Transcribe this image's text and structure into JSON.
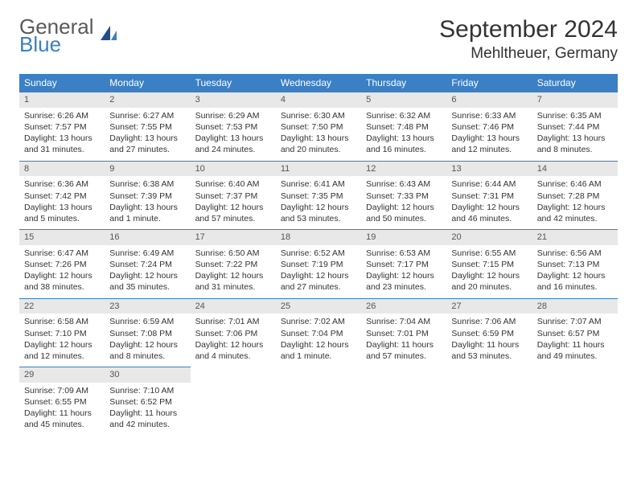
{
  "logo": {
    "general": "General",
    "blue": "Blue"
  },
  "title": "September 2024",
  "location": "Mehltheuer, Germany",
  "colors": {
    "header_bg": "#3b7fc4",
    "header_text": "#ffffff",
    "daynum_bg": "#e8e8e8",
    "daynum_border": "#3b7fc4",
    "text": "#333333",
    "logo_gray": "#5a5a5a",
    "logo_blue": "#3b7fc4"
  },
  "day_names": [
    "Sunday",
    "Monday",
    "Tuesday",
    "Wednesday",
    "Thursday",
    "Friday",
    "Saturday"
  ],
  "weeks": [
    [
      {
        "n": "1",
        "sunrise": "Sunrise: 6:26 AM",
        "sunset": "Sunset: 7:57 PM",
        "daylight": "Daylight: 13 hours and 31 minutes."
      },
      {
        "n": "2",
        "sunrise": "Sunrise: 6:27 AM",
        "sunset": "Sunset: 7:55 PM",
        "daylight": "Daylight: 13 hours and 27 minutes."
      },
      {
        "n": "3",
        "sunrise": "Sunrise: 6:29 AM",
        "sunset": "Sunset: 7:53 PM",
        "daylight": "Daylight: 13 hours and 24 minutes."
      },
      {
        "n": "4",
        "sunrise": "Sunrise: 6:30 AM",
        "sunset": "Sunset: 7:50 PM",
        "daylight": "Daylight: 13 hours and 20 minutes."
      },
      {
        "n": "5",
        "sunrise": "Sunrise: 6:32 AM",
        "sunset": "Sunset: 7:48 PM",
        "daylight": "Daylight: 13 hours and 16 minutes."
      },
      {
        "n": "6",
        "sunrise": "Sunrise: 6:33 AM",
        "sunset": "Sunset: 7:46 PM",
        "daylight": "Daylight: 13 hours and 12 minutes."
      },
      {
        "n": "7",
        "sunrise": "Sunrise: 6:35 AM",
        "sunset": "Sunset: 7:44 PM",
        "daylight": "Daylight: 13 hours and 8 minutes."
      }
    ],
    [
      {
        "n": "8",
        "sunrise": "Sunrise: 6:36 AM",
        "sunset": "Sunset: 7:42 PM",
        "daylight": "Daylight: 13 hours and 5 minutes."
      },
      {
        "n": "9",
        "sunrise": "Sunrise: 6:38 AM",
        "sunset": "Sunset: 7:39 PM",
        "daylight": "Daylight: 13 hours and 1 minute."
      },
      {
        "n": "10",
        "sunrise": "Sunrise: 6:40 AM",
        "sunset": "Sunset: 7:37 PM",
        "daylight": "Daylight: 12 hours and 57 minutes."
      },
      {
        "n": "11",
        "sunrise": "Sunrise: 6:41 AM",
        "sunset": "Sunset: 7:35 PM",
        "daylight": "Daylight: 12 hours and 53 minutes."
      },
      {
        "n": "12",
        "sunrise": "Sunrise: 6:43 AM",
        "sunset": "Sunset: 7:33 PM",
        "daylight": "Daylight: 12 hours and 50 minutes."
      },
      {
        "n": "13",
        "sunrise": "Sunrise: 6:44 AM",
        "sunset": "Sunset: 7:31 PM",
        "daylight": "Daylight: 12 hours and 46 minutes."
      },
      {
        "n": "14",
        "sunrise": "Sunrise: 6:46 AM",
        "sunset": "Sunset: 7:28 PM",
        "daylight": "Daylight: 12 hours and 42 minutes."
      }
    ],
    [
      {
        "n": "15",
        "sunrise": "Sunrise: 6:47 AM",
        "sunset": "Sunset: 7:26 PM",
        "daylight": "Daylight: 12 hours and 38 minutes."
      },
      {
        "n": "16",
        "sunrise": "Sunrise: 6:49 AM",
        "sunset": "Sunset: 7:24 PM",
        "daylight": "Daylight: 12 hours and 35 minutes."
      },
      {
        "n": "17",
        "sunrise": "Sunrise: 6:50 AM",
        "sunset": "Sunset: 7:22 PM",
        "daylight": "Daylight: 12 hours and 31 minutes."
      },
      {
        "n": "18",
        "sunrise": "Sunrise: 6:52 AM",
        "sunset": "Sunset: 7:19 PM",
        "daylight": "Daylight: 12 hours and 27 minutes."
      },
      {
        "n": "19",
        "sunrise": "Sunrise: 6:53 AM",
        "sunset": "Sunset: 7:17 PM",
        "daylight": "Daylight: 12 hours and 23 minutes."
      },
      {
        "n": "20",
        "sunrise": "Sunrise: 6:55 AM",
        "sunset": "Sunset: 7:15 PM",
        "daylight": "Daylight: 12 hours and 20 minutes."
      },
      {
        "n": "21",
        "sunrise": "Sunrise: 6:56 AM",
        "sunset": "Sunset: 7:13 PM",
        "daylight": "Daylight: 12 hours and 16 minutes."
      }
    ],
    [
      {
        "n": "22",
        "sunrise": "Sunrise: 6:58 AM",
        "sunset": "Sunset: 7:10 PM",
        "daylight": "Daylight: 12 hours and 12 minutes."
      },
      {
        "n": "23",
        "sunrise": "Sunrise: 6:59 AM",
        "sunset": "Sunset: 7:08 PM",
        "daylight": "Daylight: 12 hours and 8 minutes."
      },
      {
        "n": "24",
        "sunrise": "Sunrise: 7:01 AM",
        "sunset": "Sunset: 7:06 PM",
        "daylight": "Daylight: 12 hours and 4 minutes."
      },
      {
        "n": "25",
        "sunrise": "Sunrise: 7:02 AM",
        "sunset": "Sunset: 7:04 PM",
        "daylight": "Daylight: 12 hours and 1 minute."
      },
      {
        "n": "26",
        "sunrise": "Sunrise: 7:04 AM",
        "sunset": "Sunset: 7:01 PM",
        "daylight": "Daylight: 11 hours and 57 minutes."
      },
      {
        "n": "27",
        "sunrise": "Sunrise: 7:06 AM",
        "sunset": "Sunset: 6:59 PM",
        "daylight": "Daylight: 11 hours and 53 minutes."
      },
      {
        "n": "28",
        "sunrise": "Sunrise: 7:07 AM",
        "sunset": "Sunset: 6:57 PM",
        "daylight": "Daylight: 11 hours and 49 minutes."
      }
    ],
    [
      {
        "n": "29",
        "sunrise": "Sunrise: 7:09 AM",
        "sunset": "Sunset: 6:55 PM",
        "daylight": "Daylight: 11 hours and 45 minutes."
      },
      {
        "n": "30",
        "sunrise": "Sunrise: 7:10 AM",
        "sunset": "Sunset: 6:52 PM",
        "daylight": "Daylight: 11 hours and 42 minutes."
      },
      null,
      null,
      null,
      null,
      null
    ]
  ]
}
